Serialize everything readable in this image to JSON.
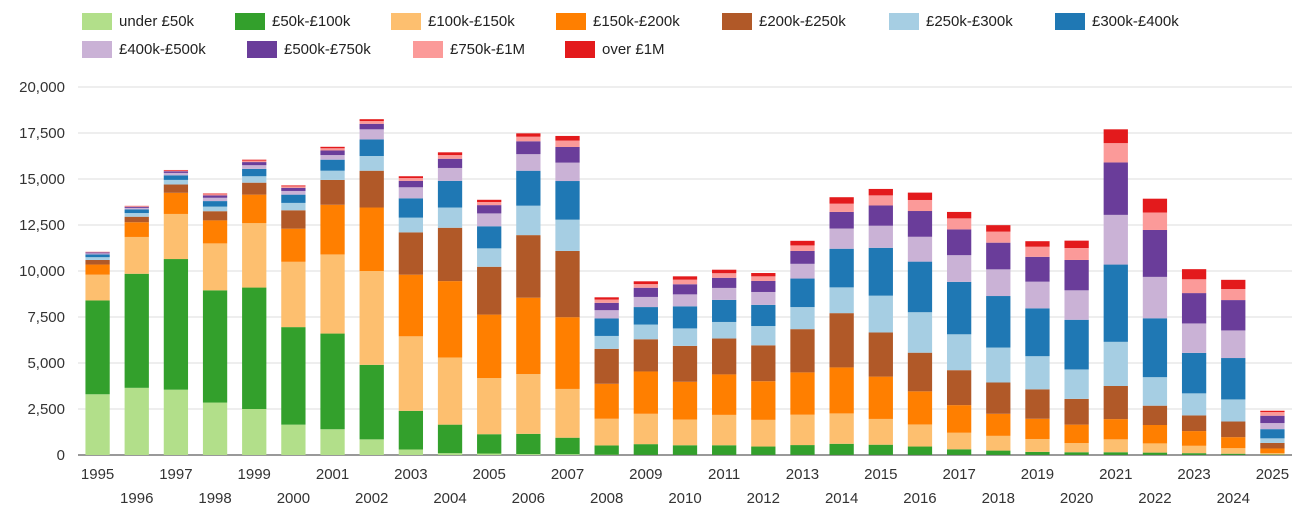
{
  "chart_data": {
    "type": "bar",
    "stacked": true,
    "title": "",
    "xlabel": "",
    "ylabel": "",
    "ylim": [
      0,
      20000
    ],
    "yticks": [
      0,
      2500,
      5000,
      7500,
      10000,
      12500,
      15000,
      17500,
      20000
    ],
    "ytick_labels": [
      "0",
      "2,500",
      "5,000",
      "7,500",
      "10,000",
      "12,500",
      "15,000",
      "17,500",
      "20,000"
    ],
    "grid": true,
    "legend_position": "top-left",
    "categories": [
      "1995",
      "1996",
      "1997",
      "1998",
      "1999",
      "2000",
      "2001",
      "2002",
      "2003",
      "2004",
      "2005",
      "2006",
      "2007",
      "2008",
      "2009",
      "2010",
      "2011",
      "2012",
      "2013",
      "2014",
      "2015",
      "2016",
      "2017",
      "2018",
      "2019",
      "2020",
      "2021",
      "2022",
      "2023",
      "2024",
      "2025"
    ],
    "series": [
      {
        "name": "under £50k",
        "color": "#b2df8a",
        "values": [
          3300,
          3650,
          3550,
          2850,
          2500,
          1650,
          1400,
          850,
          300,
          100,
          80,
          50,
          40,
          20,
          10,
          10,
          10,
          10,
          10,
          10,
          10,
          10,
          10,
          10,
          10,
          10,
          10,
          10,
          10,
          10,
          5
        ]
      },
      {
        "name": "£50k-£100k",
        "color": "#33a02c",
        "values": [
          5100,
          6200,
          7100,
          6100,
          6600,
          5300,
          5200,
          4050,
          2100,
          1550,
          1050,
          1100,
          900,
          500,
          580,
          520,
          520,
          450,
          530,
          600,
          550,
          450,
          300,
          230,
          160,
          140,
          140,
          120,
          90,
          60,
          20
        ]
      },
      {
        "name": "£100k-£150k",
        "color": "#fdbf6f",
        "values": [
          1400,
          2000,
          2450,
          2550,
          3500,
          3550,
          4300,
          5100,
          4050,
          3650,
          3050,
          3250,
          2650,
          1450,
          1650,
          1400,
          1650,
          1450,
          1650,
          1650,
          1400,
          1200,
          900,
          800,
          700,
          500,
          700,
          500,
          400,
          300,
          80
        ]
      },
      {
        "name": "£150k-£200k",
        "color": "#ff7f00",
        "values": [
          550,
          800,
          1150,
          1250,
          1550,
          1800,
          2700,
          3450,
          3350,
          4150,
          3450,
          4150,
          3900,
          1900,
          2300,
          2050,
          2200,
          2100,
          2300,
          2500,
          2300,
          1800,
          1500,
          1200,
          1100,
          1000,
          1100,
          1000,
          800,
          600,
          250
        ]
      },
      {
        "name": "£200k-£250k",
        "color": "#b15928",
        "values": [
          250,
          300,
          450,
          500,
          650,
          1000,
          1350,
          2000,
          2300,
          2900,
          2600,
          3400,
          3600,
          1900,
          1750,
          1950,
          1950,
          1950,
          2350,
          2950,
          2400,
          2100,
          1900,
          1700,
          1600,
          1400,
          1800,
          1050,
          850,
          850,
          300
        ]
      },
      {
        "name": "£250k-£300k",
        "color": "#a6cee3",
        "values": [
          150,
          200,
          250,
          250,
          350,
          400,
          500,
          800,
          800,
          1100,
          1000,
          1600,
          1700,
          700,
          800,
          950,
          900,
          1050,
          1200,
          1400,
          2000,
          2200,
          1950,
          1900,
          1800,
          1600,
          2400,
          1550,
          1200,
          1200,
          250
        ]
      },
      {
        "name": "£300k-£400k",
        "color": "#1f78b4",
        "values": [
          150,
          200,
          250,
          300,
          400,
          450,
          600,
          900,
          1050,
          1450,
          1200,
          1900,
          2100,
          950,
          950,
          1200,
          1200,
          1150,
          1550,
          2100,
          2600,
          2750,
          2850,
          2800,
          2600,
          2700,
          4200,
          3200,
          2200,
          2250,
          500
        ]
      },
      {
        "name": "£400k-£500k",
        "color": "#cab2d6",
        "values": [
          60,
          80,
          130,
          180,
          200,
          200,
          250,
          550,
          600,
          700,
          700,
          900,
          1000,
          450,
          550,
          650,
          650,
          700,
          800,
          1100,
          1200,
          1350,
          1450,
          1450,
          1450,
          1600,
          2700,
          2250,
          1600,
          1500,
          330
        ]
      },
      {
        "name": "£500k-£750k",
        "color": "#6a3d9a",
        "values": [
          50,
          60,
          90,
          130,
          170,
          170,
          250,
          300,
          350,
          500,
          450,
          700,
          850,
          400,
          500,
          550,
          550,
          600,
          700,
          900,
          1100,
          1400,
          1400,
          1450,
          1350,
          1650,
          2850,
          2550,
          1650,
          1650,
          400
        ]
      },
      {
        "name": "£750k-£1M",
        "color": "#fb9a99",
        "values": [
          20,
          30,
          40,
          60,
          80,
          80,
          120,
          150,
          150,
          200,
          170,
          250,
          350,
          180,
          200,
          250,
          250,
          250,
          300,
          450,
          550,
          600,
          600,
          600,
          550,
          650,
          1050,
          950,
          750,
          600,
          200
        ]
      },
      {
        "name": "over £1M",
        "color": "#e31a1c",
        "values": [
          10,
          20,
          30,
          40,
          50,
          50,
          80,
          100,
          100,
          150,
          120,
          180,
          250,
          120,
          150,
          180,
          190,
          180,
          250,
          350,
          350,
          400,
          350,
          350,
          300,
          400,
          750,
          750,
          550,
          500,
          70
        ]
      }
    ]
  }
}
